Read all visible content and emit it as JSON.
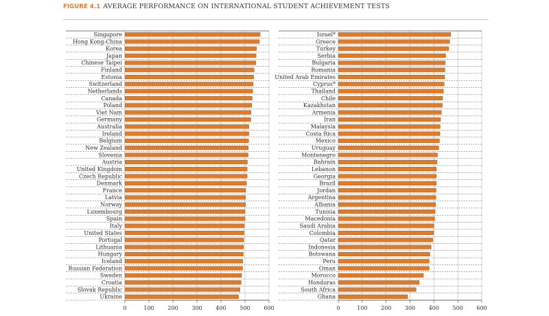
{
  "figure": {
    "number": "FIGURE 4.1",
    "title": "AVERAGE PERFORMANCE ON INTERNATIONAL STUDENT ACHIEVEMENT TESTS"
  },
  "colors": {
    "bar": "#e07b2a",
    "bar_stroke": "#8a4a15",
    "grid": "#b8b8b8",
    "axis": "#444444"
  },
  "chart_data": [
    {
      "type": "bar",
      "orientation": "horizontal",
      "xlim": [
        0,
        600
      ],
      "xticks": [
        0,
        100,
        200,
        300,
        400,
        500,
        600
      ],
      "categories": [
        "Singapore",
        "Hong Kong-China",
        "Korea",
        "Japan",
        "Chinese Taipei",
        "Finland",
        "Estonia",
        "Switzerland",
        "Netherlands",
        "Canada",
        "Poland",
        "Viet Nam",
        "Germany",
        "Australia",
        "Ireland",
        "Belgium",
        "New Zealand",
        "Slovenia",
        "Austria",
        "United Kingdom",
        "Czech Republic",
        "Denmark",
        "France",
        "Latvia",
        "Norway",
        "Luxembourg",
        "Spain",
        "Italy",
        "United States",
        "Portugal",
        "Lithuania",
        "Hungary",
        "Iceland",
        "Russian Federation",
        "Sweden",
        "Croatia",
        "Slovak Republic",
        "Ukraine"
      ],
      "values": [
        563,
        560,
        548,
        546,
        545,
        538,
        536,
        534,
        532,
        530,
        528,
        525,
        524,
        516,
        516,
        515,
        514,
        513,
        510,
        509,
        509,
        506,
        503,
        502,
        502,
        500,
        500,
        497,
        496,
        495,
        494,
        493,
        491,
        490,
        486,
        484,
        479,
        473
      ]
    },
    {
      "type": "bar",
      "orientation": "horizontal",
      "xlim": [
        0,
        600
      ],
      "xticks": [
        0,
        100,
        200,
        300,
        400,
        500,
        600
      ],
      "categories": [
        "Israel*",
        "Greece",
        "Turkey",
        "Serbia",
        "Bulgaria",
        "Romania",
        "United Arab Emirates",
        "Cyprus*",
        "Thailand",
        "Chile",
        "Kazakhstan",
        "Armenia",
        "Iran",
        "Malaysia",
        "Costa Rica",
        "Mexico",
        "Uruguay",
        "Montenegro",
        "Bahrain",
        "Lebanon",
        "Georgia",
        "Brazil",
        "Jordan",
        "Argentina",
        "Albania",
        "Tunisia",
        "Macedonia",
        "Saudi Arabia",
        "Colombia",
        "Qatar",
        "Indonesia",
        "Botswana",
        "Peru",
        "Oman",
        "Morocco",
        "Honduras",
        "South Africa",
        "Ghana"
      ],
      "values": [
        470,
        466,
        462,
        449,
        447,
        446,
        445,
        443,
        440,
        436,
        435,
        431,
        427,
        426,
        425,
        423,
        420,
        415,
        413,
        410,
        410,
        410,
        409,
        408,
        407,
        405,
        403,
        400,
        399,
        395,
        388,
        383,
        380,
        380,
        356,
        338,
        325,
        290
      ]
    }
  ]
}
